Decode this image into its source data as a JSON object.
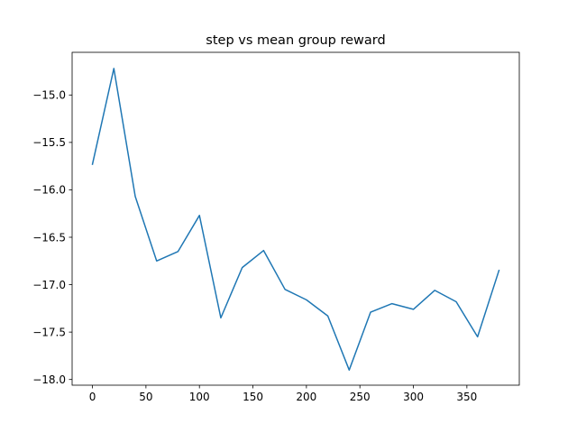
{
  "chart_data": {
    "type": "line",
    "title": "step vs mean group reward",
    "xlabel": "",
    "ylabel": "",
    "grid": false,
    "legend": "none",
    "xlim": [
      -19,
      399
    ],
    "ylim": [
      -18.06,
      -14.55
    ],
    "xticks": [
      0,
      50,
      100,
      150,
      200,
      250,
      300,
      350
    ],
    "yticks": [
      -15.0,
      -15.5,
      -16.0,
      -16.5,
      -17.0,
      -17.5,
      -18.0
    ],
    "ytick_labels": [
      "−15.0",
      "−15.5",
      "−16.0",
      "−16.5",
      "−17.0",
      "−17.5",
      "−18.0"
    ],
    "line_color": "#1f77b4",
    "series": [
      {
        "x": [
          0,
          20,
          40,
          60,
          80,
          100,
          120,
          140,
          160,
          180,
          200,
          220,
          240,
          260,
          280,
          300,
          320,
          340,
          360,
          380
        ],
        "y": [
          -15.73,
          -14.72,
          -16.07,
          -16.75,
          -16.65,
          -16.27,
          -17.35,
          -16.82,
          -16.64,
          -17.05,
          -17.16,
          -17.33,
          -17.9,
          -17.29,
          -17.2,
          -17.26,
          -17.06,
          -17.18,
          -17.55,
          -16.85
        ]
      }
    ]
  }
}
